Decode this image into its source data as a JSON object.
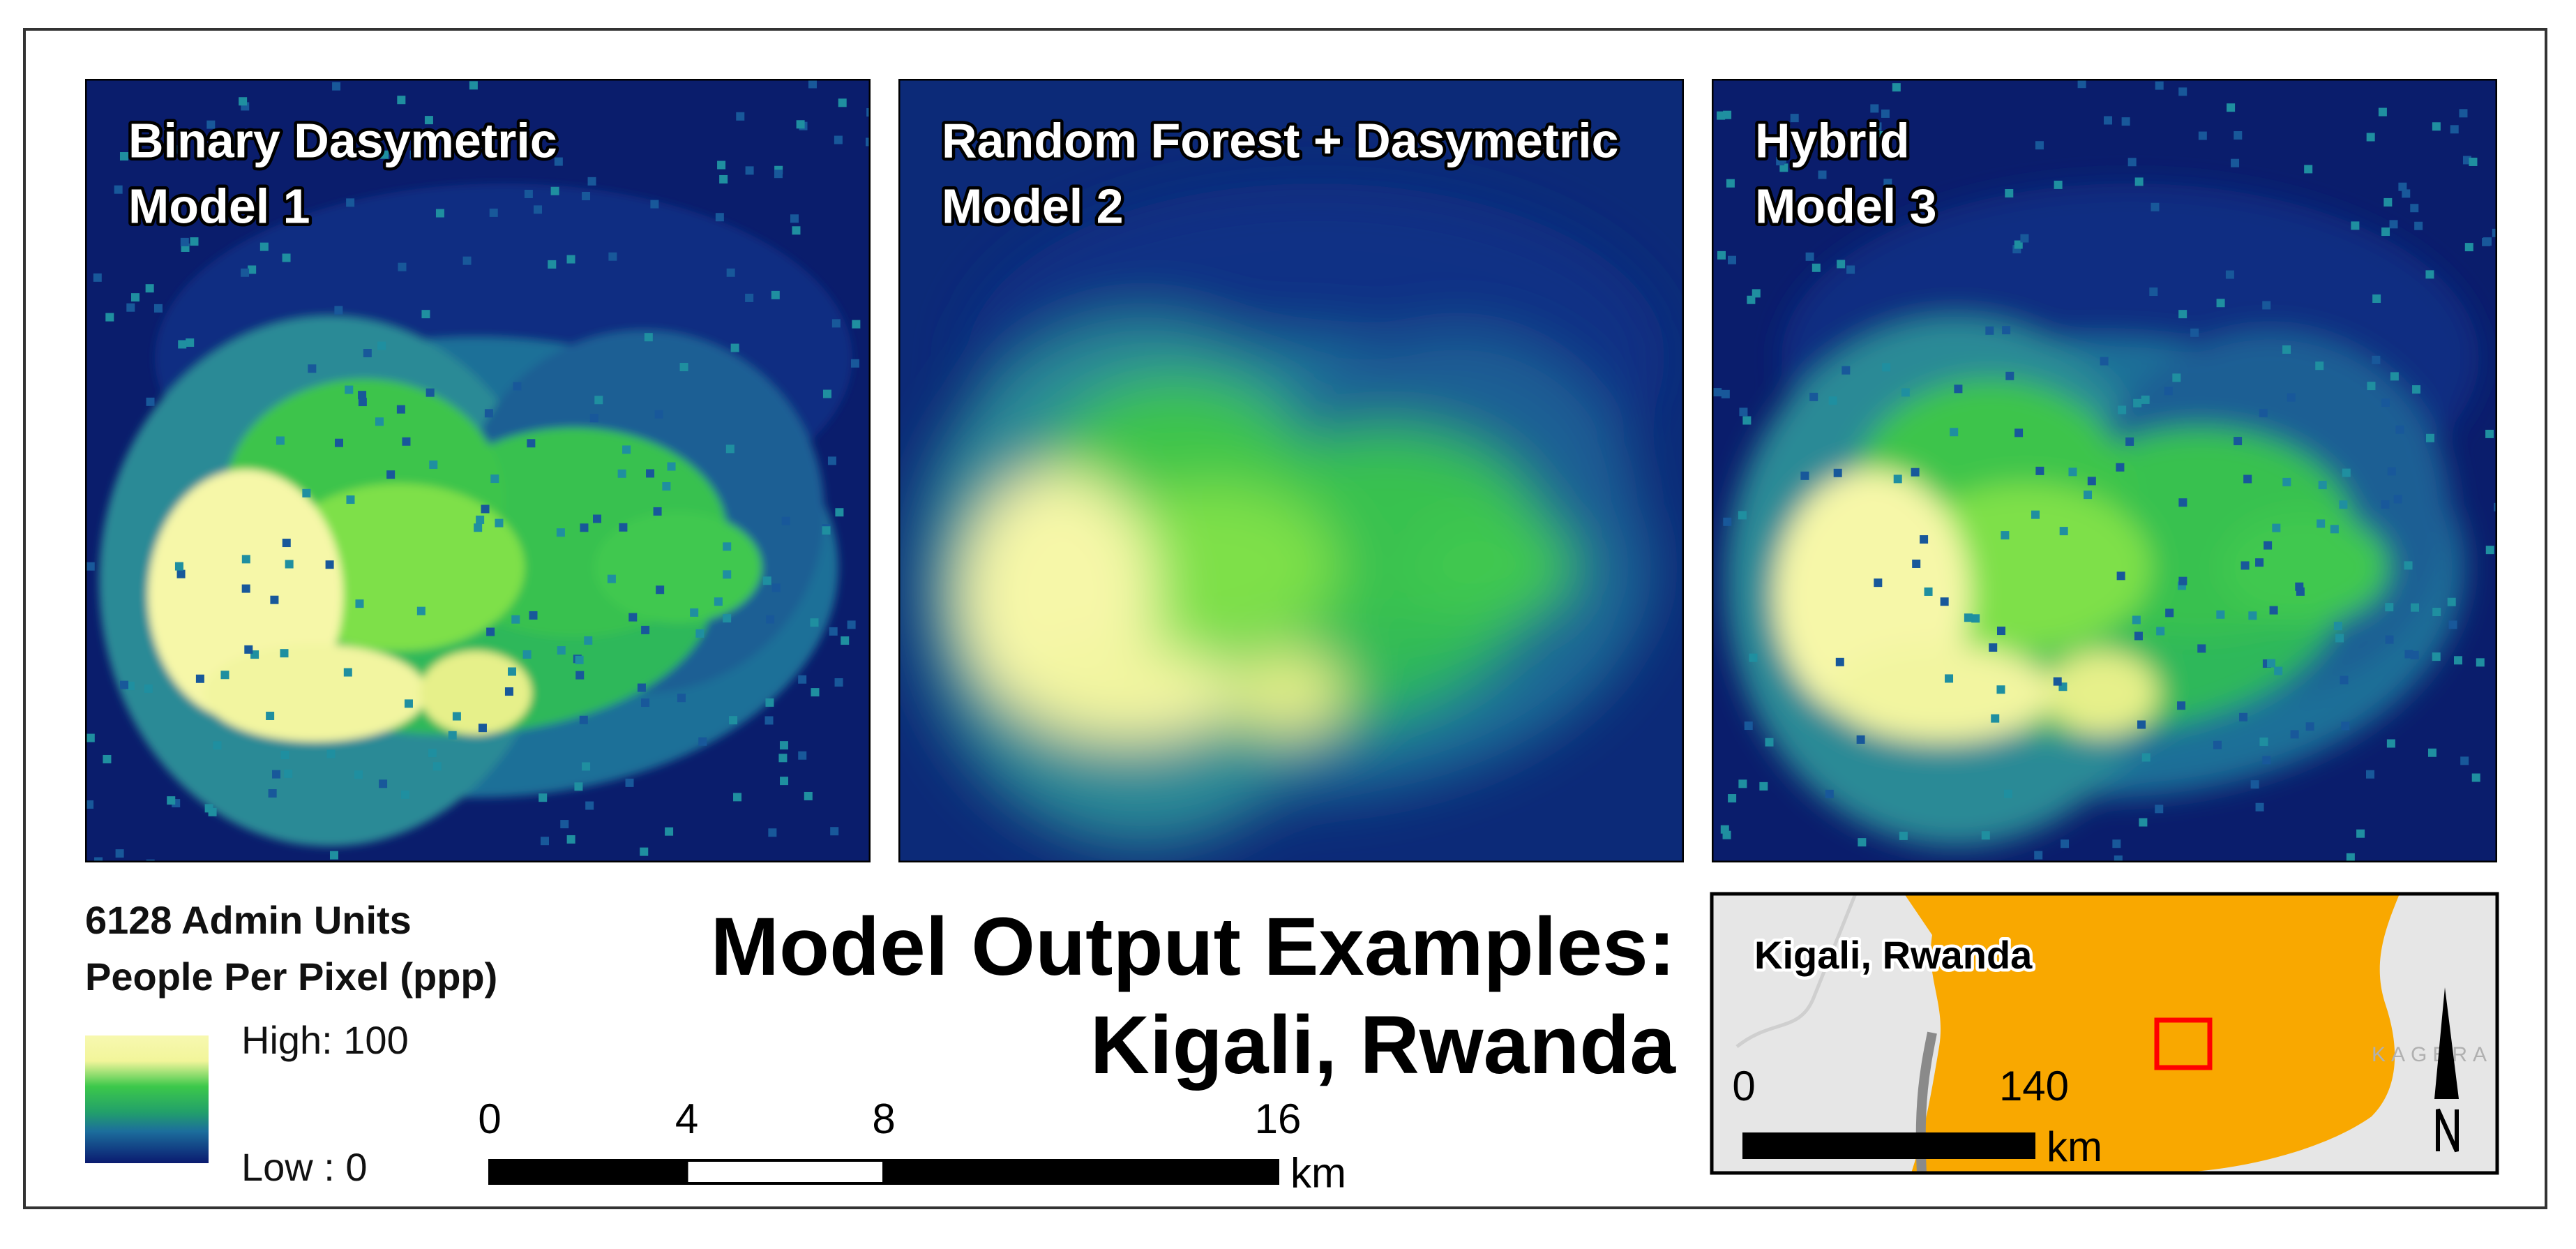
{
  "panels": [
    {
      "title": "Binary Dasymetric",
      "subtitle": "Model 1"
    },
    {
      "title": "Random Forest + Dasymetric",
      "subtitle": "Model 2"
    },
    {
      "title": "Hybrid",
      "subtitle": "Model 3"
    }
  ],
  "legend": {
    "title": "6128 Admin Units",
    "subtitle": "People Per Pixel (ppp)",
    "high": "High: 100",
    "low": "Low : 0"
  },
  "title": {
    "line1": "Model Output Examples:",
    "line2": "Kigali, Rwanda"
  },
  "scale_bar": {
    "ticks": [
      0,
      4,
      8,
      16
    ],
    "unit": "km"
  },
  "inset": {
    "label": "Kigali, Rwanda",
    "region": "KAGERA",
    "scale_bar": {
      "ticks": [
        0,
        140
      ],
      "unit": "km"
    }
  }
}
